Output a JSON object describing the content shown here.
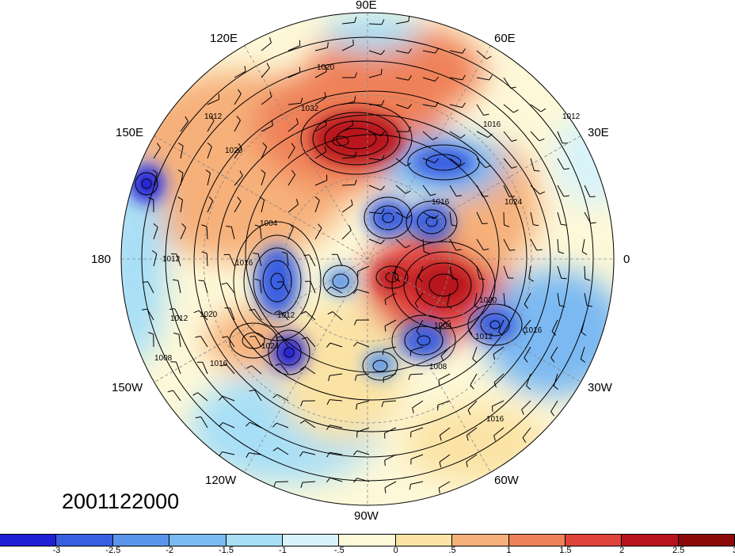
{
  "date_label": "2001122000",
  "lon_labels": {
    "e90": "90E",
    "e60": "60E",
    "e30": "30E",
    "lon0": "0",
    "w30": "30W",
    "w60": "60W",
    "w90": "90W",
    "w120": "120W",
    "w150": "150W",
    "lon180": "180",
    "e150": "150E",
    "e120": "120E"
  },
  "contour_labels": [
    "1020",
    "1032",
    "1012",
    "1020",
    "1016",
    "1024",
    "1016",
    "1004",
    "1016",
    "1012",
    "1020",
    "1012",
    "1024",
    "1016",
    "1008",
    "1012",
    "1004",
    "1008",
    "1012",
    "1016",
    "1012",
    "1020",
    "1016"
  ],
  "colorbar": {
    "colors": [
      "#1f1fd6",
      "#3a5ee0",
      "#5a95eb",
      "#7bb9f2",
      "#a8dff7",
      "#d8f3fa",
      "#fdf8d8",
      "#fbe3a5",
      "#f6b07a",
      "#ef8158",
      "#e0423c",
      "#b8121e",
      "#8c0a0a"
    ],
    "ticks": [
      "-3",
      "-2.5",
      "-2",
      "-1.5",
      "-1",
      "-.5",
      "0",
      ".5",
      "1",
      "1.5",
      "2",
      "2.5",
      "3"
    ]
  },
  "anomaly_features": [
    {
      "name": "north-asia-high",
      "sign": "positive",
      "strength": 3
    },
    {
      "name": "north-atlantic-high",
      "sign": "positive",
      "strength": 2.5
    },
    {
      "name": "siberia-low",
      "sign": "negative",
      "strength": 2
    },
    {
      "name": "north-pacific-high",
      "sign": "positive",
      "strength": 1.5
    },
    {
      "name": "alaska-low",
      "sign": "negative",
      "strength": 3
    },
    {
      "name": "arctic-low",
      "sign": "negative",
      "strength": 2
    },
    {
      "name": "greenland-low",
      "sign": "negative",
      "strength": 2.5
    },
    {
      "name": "hudson-low",
      "sign": "negative",
      "strength": 2.5
    },
    {
      "name": "east-pacific-low",
      "sign": "negative",
      "strength": 3
    },
    {
      "name": "atlantic-low",
      "sign": "negative",
      "strength": 2
    },
    {
      "name": "tropical-west-pacific-low",
      "sign": "negative",
      "strength": 3
    }
  ]
}
